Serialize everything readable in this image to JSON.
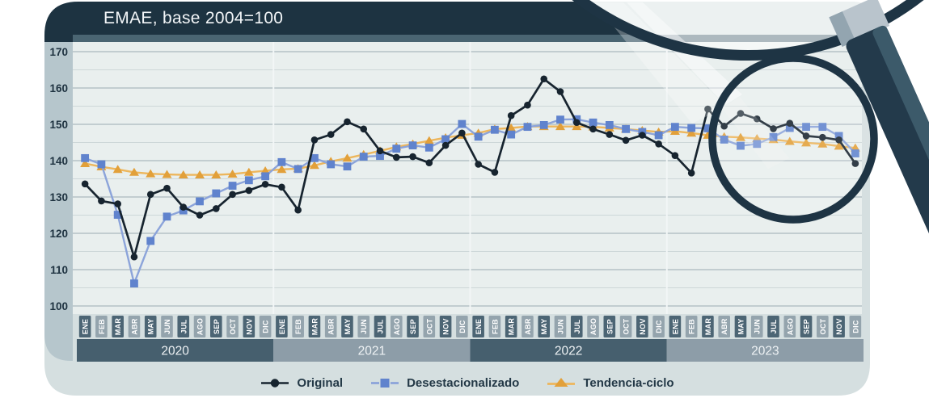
{
  "header": {
    "title": "EMAE, base 2004=100"
  },
  "colors": {
    "banner": "#1d3341",
    "top_bar": "#4a6572",
    "card_bg": "#d5dfe0",
    "axis_column_bg": "#b6c6cc",
    "plot_bg": "#e9efee",
    "grid_major": "#b5c2c6",
    "grid_minor": "#cdd7d8",
    "year_separator": "#f2f6f6",
    "tick_label": "#1e3240",
    "chip_dark": "#4c6574",
    "chip_light": "#94a4ad",
    "band_dark": "#465f6e",
    "band_light": "#8d9da8",
    "chip_text": "#ffffff",
    "lens_rim": "#1e3444",
    "handle_dark": "#233a4b",
    "handle_stripe": "#3c5a6a",
    "ferrule": "#b9c4cc",
    "legend_text": "#243947"
  },
  "y_axis": {
    "tick_values": [
      170,
      160,
      150,
      140,
      130,
      120,
      110,
      100
    ]
  },
  "chart_data": {
    "type": "line",
    "title": "EMAE, base 2004=100",
    "months": [
      "ENE",
      "FEB",
      "MAR",
      "ABR",
      "MAY",
      "JUN",
      "JUL",
      "AGO",
      "SEP",
      "OCT",
      "NOV",
      "DIC"
    ],
    "years": [
      "2020",
      "2021",
      "2022",
      "2023"
    ],
    "ylim": [
      100,
      170
    ],
    "grid": {
      "major_step": 10,
      "minor_step": 5
    },
    "legend_position": "bottom",
    "series": [
      {
        "name": "Original",
        "marker": "circle",
        "color": "#17242f",
        "line_color": "#17242f",
        "values": [
          133.6,
          128.9,
          128.1,
          113.5,
          130.7,
          132.4,
          127.2,
          125.0,
          126.8,
          130.7,
          131.8,
          133.5,
          132.7,
          126.4,
          145.7,
          147.2,
          150.7,
          148.7,
          142.7,
          140.9,
          141.1,
          139.4,
          144.2,
          147.6,
          139.0,
          136.8,
          152.4,
          155.3,
          162.5,
          159.0,
          150.5,
          148.7,
          147.2,
          145.6,
          147.0,
          144.6,
          141.4,
          136.6,
          154.2,
          149.5,
          153.0,
          151.5,
          148.8,
          150.3,
          146.8,
          146.4,
          145.7,
          139.2
        ]
      },
      {
        "name": "Desestacionalizado",
        "marker": "square",
        "color": "#6083cd",
        "line_color": "#8ca4da",
        "values": [
          140.7,
          139.0,
          125.1,
          106.2,
          117.9,
          124.6,
          126.3,
          128.8,
          131.0,
          133.1,
          134.6,
          135.7,
          139.6,
          137.7,
          140.7,
          139.0,
          138.4,
          141.1,
          141.3,
          143.3,
          144.2,
          143.6,
          145.9,
          150.1,
          146.6,
          148.5,
          147.2,
          149.3,
          149.8,
          151.3,
          151.4,
          150.5,
          149.8,
          148.7,
          147.9,
          147.0,
          149.3,
          149.0,
          148.9,
          145.8,
          144.1,
          144.6,
          146.5,
          149.0,
          149.3,
          149.3,
          146.8,
          142.0
        ]
      },
      {
        "name": "Tendencia-ciclo",
        "marker": "triangle",
        "color": "#e2a03a",
        "line_color": "#edb65c",
        "values": [
          139.2,
          138.3,
          137.6,
          136.8,
          136.4,
          136.2,
          136.1,
          136.1,
          136.1,
          136.3,
          136.8,
          137.2,
          137.6,
          137.8,
          138.7,
          139.8,
          140.7,
          141.7,
          142.7,
          143.8,
          144.6,
          145.5,
          146.3,
          147.0,
          147.6,
          148.7,
          149.0,
          149.4,
          149.4,
          149.4,
          149.4,
          149.3,
          149.0,
          148.7,
          148.3,
          147.9,
          148.1,
          147.6,
          147.0,
          146.6,
          146.4,
          146.1,
          145.8,
          145.3,
          144.9,
          144.6,
          144.0,
          143.5
        ]
      }
    ]
  },
  "legend": {
    "items": [
      {
        "label": "Original"
      },
      {
        "label": "Desestacionalizado"
      },
      {
        "label": "Tendencia-ciclo"
      }
    ]
  }
}
